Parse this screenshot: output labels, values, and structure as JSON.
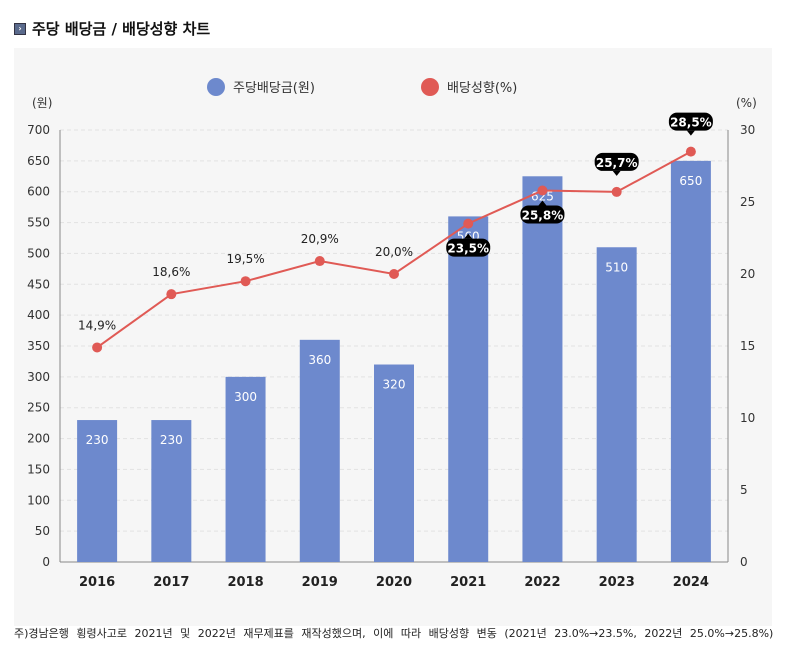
{
  "title": "주당 배당금 / 배당성향 차트",
  "note": "주)경남은행 횡령사고로 2021년 및 2022년 재무제표를 재작성했으며, 이에 따라 배당성향 변동 (2021년 23.0%→23.5%, 2022년 25.0%→25.8%)",
  "colors": {
    "bar": "#6d89cd",
    "line": "#e05a55",
    "label_bg": "#000000"
  },
  "chart_data": {
    "type": "bar+line",
    "categories": [
      "2016",
      "2017",
      "2018",
      "2019",
      "2020",
      "2021",
      "2022",
      "2023",
      "2024"
    ],
    "series": [
      {
        "name": "주당배당금(원)",
        "type": "bar",
        "axis": "left",
        "values": [
          230,
          230,
          300,
          360,
          320,
          560,
          625,
          510,
          650
        ],
        "labels": [
          "230",
          "230",
          "300",
          "360",
          "320",
          "560",
          "625",
          "510",
          "650"
        ]
      },
      {
        "name": "배당성향(%)",
        "type": "line",
        "axis": "right",
        "values": [
          14.9,
          18.6,
          19.5,
          20.9,
          20.0,
          23.5,
          25.8,
          25.7,
          28.5
        ],
        "labels": [
          "14,9%",
          "18,6%",
          "19,5%",
          "20,9%",
          "20,0%",
          "23,5%",
          "25,8%",
          "25,7%",
          "28,5%"
        ],
        "highlighted": [
          false,
          false,
          false,
          false,
          false,
          true,
          true,
          true,
          true
        ]
      }
    ],
    "left_axis": {
      "unit": "(원)",
      "ylim": [
        0,
        700
      ],
      "ticks": [
        "0",
        "50",
        "100",
        "150",
        "200",
        "250",
        "300",
        "350",
        "400",
        "450",
        "500",
        "550",
        "600",
        "650",
        "700"
      ]
    },
    "right_axis": {
      "unit": "(%)",
      "ylim": [
        0,
        30
      ],
      "ticks": [
        "0",
        "5",
        "10",
        "15",
        "20",
        "25",
        "30"
      ]
    },
    "grid": true,
    "legend": "top-center"
  }
}
